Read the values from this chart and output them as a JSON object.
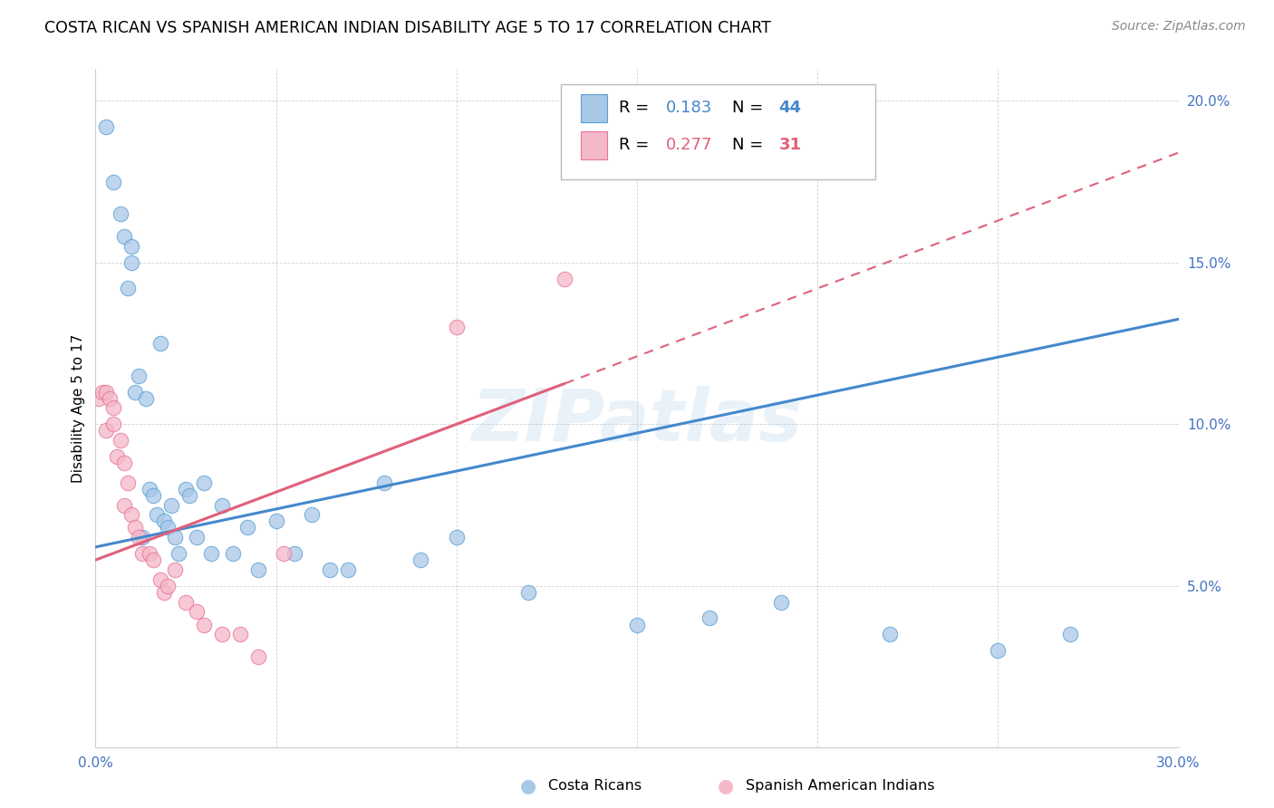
{
  "title": "COSTA RICAN VS SPANISH AMERICAN INDIAN DISABILITY AGE 5 TO 17 CORRELATION CHART",
  "source": "Source: ZipAtlas.com",
  "ylabel": "Disability Age 5 to 17",
  "xlim": [
    0.0,
    0.3
  ],
  "ylim": [
    0.0,
    0.21
  ],
  "xticks": [
    0.0,
    0.05,
    0.1,
    0.15,
    0.2,
    0.25,
    0.3
  ],
  "yticks": [
    0.0,
    0.05,
    0.1,
    0.15,
    0.2
  ],
  "blue_R": 0.183,
  "blue_N": 44,
  "pink_R": 0.277,
  "pink_N": 31,
  "blue_color": "#a8c8e8",
  "pink_color": "#f4b8c8",
  "blue_edge_color": "#5a9fd4",
  "pink_edge_color": "#e8729a",
  "blue_line_color": "#4488cc",
  "pink_line_color": "#e0607a",
  "tick_color": "#4472c4",
  "watermark": "ZIPatlas",
  "blue_intercept": 0.062,
  "blue_slope": 0.235,
  "pink_intercept": 0.058,
  "pink_slope": 0.42,
  "costa_rican_x": [
    0.003,
    0.005,
    0.007,
    0.008,
    0.009,
    0.01,
    0.01,
    0.011,
    0.012,
    0.013,
    0.014,
    0.015,
    0.016,
    0.017,
    0.018,
    0.019,
    0.02,
    0.021,
    0.022,
    0.023,
    0.025,
    0.026,
    0.028,
    0.03,
    0.032,
    0.035,
    0.038,
    0.042,
    0.045,
    0.05,
    0.055,
    0.06,
    0.065,
    0.07,
    0.08,
    0.09,
    0.1,
    0.12,
    0.15,
    0.17,
    0.19,
    0.22,
    0.25,
    0.27
  ],
  "costa_rican_y": [
    0.192,
    0.175,
    0.165,
    0.158,
    0.142,
    0.155,
    0.15,
    0.11,
    0.115,
    0.065,
    0.108,
    0.08,
    0.078,
    0.072,
    0.125,
    0.07,
    0.068,
    0.075,
    0.065,
    0.06,
    0.08,
    0.078,
    0.065,
    0.082,
    0.06,
    0.075,
    0.06,
    0.068,
    0.055,
    0.07,
    0.06,
    0.072,
    0.055,
    0.055,
    0.082,
    0.058,
    0.065,
    0.048,
    0.038,
    0.04,
    0.045,
    0.035,
    0.03,
    0.035
  ],
  "spanish_american_x": [
    0.001,
    0.002,
    0.003,
    0.003,
    0.004,
    0.005,
    0.005,
    0.006,
    0.007,
    0.008,
    0.008,
    0.009,
    0.01,
    0.011,
    0.012,
    0.013,
    0.015,
    0.016,
    0.018,
    0.019,
    0.02,
    0.022,
    0.025,
    0.028,
    0.03,
    0.035,
    0.04,
    0.045,
    0.052,
    0.1,
    0.13
  ],
  "spanish_american_y": [
    0.108,
    0.11,
    0.11,
    0.098,
    0.108,
    0.105,
    0.1,
    0.09,
    0.095,
    0.088,
    0.075,
    0.082,
    0.072,
    0.068,
    0.065,
    0.06,
    0.06,
    0.058,
    0.052,
    0.048,
    0.05,
    0.055,
    0.045,
    0.042,
    0.038,
    0.035,
    0.035,
    0.028,
    0.06,
    0.13,
    0.145
  ]
}
